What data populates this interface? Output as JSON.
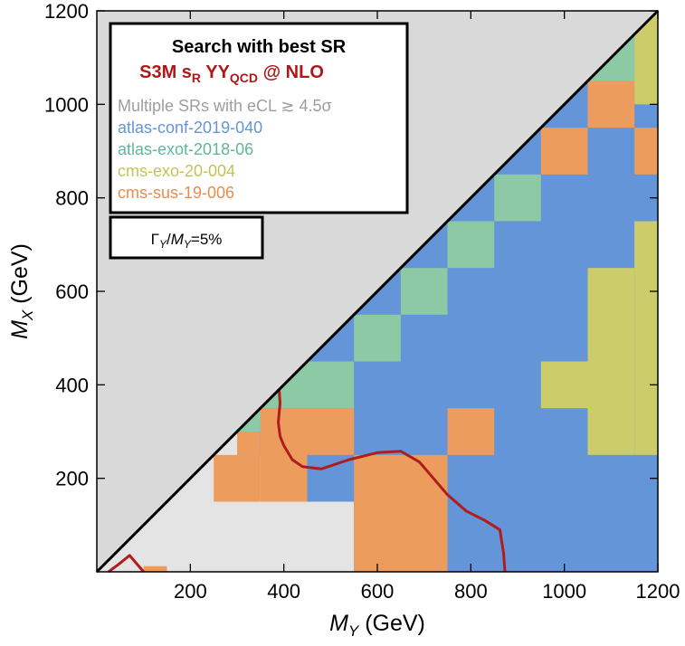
{
  "chart_data": {
    "type": "heatmap",
    "xlabel": {
      "var": "M",
      "sub": "Y",
      "unit": " (GeV)"
    },
    "ylabel": {
      "var": "M",
      "sub": "X",
      "unit": " (GeV)"
    },
    "xlim": [
      0,
      1200
    ],
    "ylim": [
      0,
      1200
    ],
    "xticks": [
      "200",
      "400",
      "600",
      "800",
      "1000",
      "1200"
    ],
    "yticks": [
      "200",
      "400",
      "600",
      "800",
      "1000",
      "1200"
    ],
    "xtick_values": [
      200,
      400,
      600,
      800,
      1000,
      1200
    ],
    "ytick_values": [
      200,
      400,
      600,
      800,
      1000,
      1200
    ],
    "legend": {
      "placement": "top-left",
      "title": "Search with best SR",
      "subtitle": {
        "main": "S3M s",
        "sub1": "R",
        "mid": " YY",
        "sub2": "QCD",
        "tail": " @ NLO"
      },
      "entries": [
        {
          "key": "multi",
          "label": "Multiple SRs with eCL ≳ 4.5σ",
          "color": "#9e9e9e"
        },
        {
          "key": "A",
          "label": "atlas-conf-2019-040",
          "color": "#6495d8"
        },
        {
          "key": "E",
          "label": "atlas-exot-2018-06",
          "color": "#5fb897"
        },
        {
          "key": "C",
          "label": "cms-exo-20-004",
          "color": "#c4c455"
        },
        {
          "key": "S",
          "label": "cms-sus-19-006",
          "color": "#e88c4e"
        }
      ]
    },
    "width_label": {
      "g": "Γ",
      "gsub": "Y",
      "sep": "/",
      "m": "M",
      "msub": "Y",
      "value": "=5%"
    },
    "colors": {
      "excluded_region": "#d9d9d9",
      "no_sensitivity": "#e4e4e4",
      "A": "#6495d8",
      "E": "#8cc9a4",
      "C": "#cccc6a",
      "S": "#ec9c5c",
      "contour": "#b01c1c"
    },
    "cells": [
      {
        "x": [
          100,
          150
        ],
        "y": [
          0,
          12
        ],
        "sr": "S"
      },
      {
        "x": [
          250,
          350
        ],
        "y": [
          150,
          250
        ],
        "sr": "S"
      },
      {
        "x": [
          350,
          450
        ],
        "y": [
          150,
          250
        ],
        "sr": "S"
      },
      {
        "x": [
          350,
          450
        ],
        "y": [
          250,
          350
        ],
        "sr": "S"
      },
      {
        "x": [
          300,
          350
        ],
        "y": [
          250,
          350
        ],
        "sr": "S"
      },
      {
        "x": [
          300,
          350
        ],
        "y": [
          300,
          350
        ],
        "sr": "E"
      },
      {
        "x": [
          450,
          550
        ],
        "y": [
          250,
          350
        ],
        "sr": "S"
      },
      {
        "x": [
          350,
          450
        ],
        "y": [
          350,
          450
        ],
        "sr": "E"
      },
      {
        "x": [
          450,
          550
        ],
        "y": [
          350,
          450
        ],
        "sr": "E"
      },
      {
        "x": [
          550,
          750
        ],
        "y": [
          0,
          250
        ],
        "sr": "S"
      },
      {
        "x": [
          750,
          850
        ],
        "y": [
          250,
          350
        ],
        "sr": "S"
      },
      {
        "x": [
          550,
          650
        ],
        "y": [
          450,
          550
        ],
        "sr": "E"
      },
      {
        "x": [
          650,
          750
        ],
        "y": [
          550,
          650
        ],
        "sr": "E"
      },
      {
        "x": [
          750,
          850
        ],
        "y": [
          650,
          750
        ],
        "sr": "E"
      },
      {
        "x": [
          850,
          950
        ],
        "y": [
          750,
          850
        ],
        "sr": "E"
      },
      {
        "x": [
          950,
          1050
        ],
        "y": [
          850,
          950
        ],
        "sr": "S"
      },
      {
        "x": [
          1050,
          1150
        ],
        "y": [
          950,
          1050
        ],
        "sr": "S"
      },
      {
        "x": [
          1050,
          1150
        ],
        "y": [
          1050,
          1150
        ],
        "sr": "E"
      },
      {
        "x": [
          1150,
          1200
        ],
        "y": [
          1150,
          1200
        ],
        "sr": "S"
      },
      {
        "x": [
          1150,
          1200
        ],
        "y": [
          1000,
          1200
        ],
        "sr": "C"
      },
      {
        "x": [
          1150,
          1200
        ],
        "y": [
          850,
          950
        ],
        "sr": "S"
      },
      {
        "x": [
          1150,
          1200
        ],
        "y": [
          250,
          750
        ],
        "sr": "C"
      },
      {
        "x": [
          1050,
          1150
        ],
        "y": [
          250,
          650
        ],
        "sr": "C"
      },
      {
        "x": [
          950,
          1050
        ],
        "y": [
          350,
          450
        ],
        "sr": "C"
      }
    ],
    "contour": [
      [
        25,
        0
      ],
      [
        45,
        15
      ],
      [
        70,
        35
      ],
      [
        100,
        0
      ]
    ],
    "contour_main": [
      [
        390,
        390
      ],
      [
        392,
        360
      ],
      [
        388,
        320
      ],
      [
        392,
        290
      ],
      [
        400,
        270
      ],
      [
        418,
        240
      ],
      [
        440,
        225
      ],
      [
        480,
        220
      ],
      [
        540,
        240
      ],
      [
        600,
        255
      ],
      [
        650,
        258
      ],
      [
        690,
        235
      ],
      [
        720,
        200
      ],
      [
        750,
        165
      ],
      [
        790,
        130
      ],
      [
        830,
        110
      ],
      [
        862,
        90
      ],
      [
        870,
        40
      ],
      [
        873,
        0
      ]
    ]
  }
}
